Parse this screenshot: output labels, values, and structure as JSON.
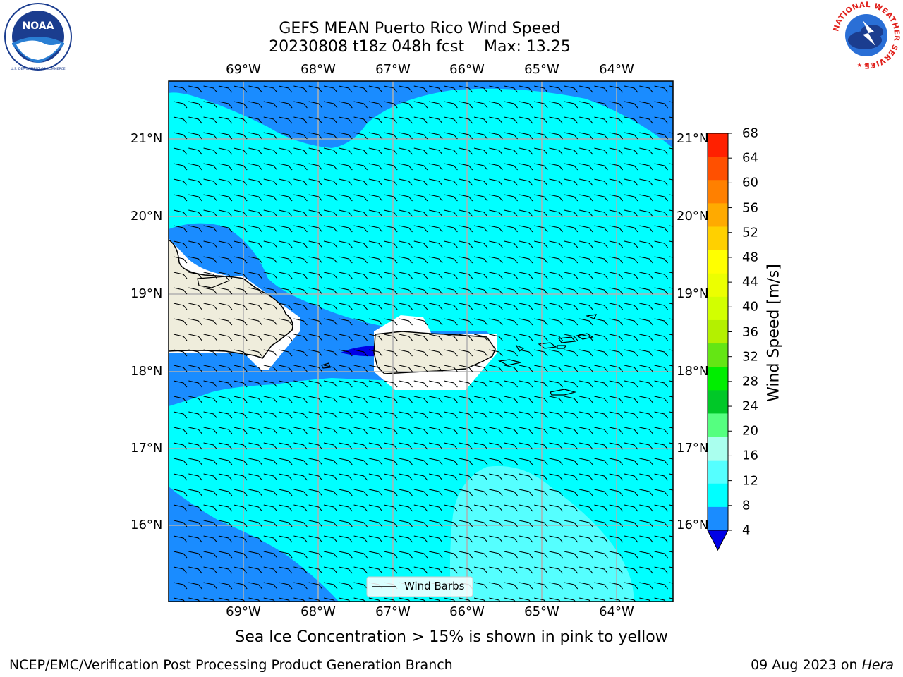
{
  "header": {
    "title_line1": "GEFS MEAN Puerto Rico Wind Speed",
    "title_line2": "20230808 t18z 048h fcst    Max: 13.25"
  },
  "map": {
    "longitudes": [
      "69°W",
      "68°W",
      "67°W",
      "66°W",
      "65°W",
      "64°W"
    ],
    "latitudes": [
      "21°N",
      "20°N",
      "19°N",
      "18°N",
      "17°N",
      "16°N"
    ],
    "legend_label": "Wind Barbs",
    "regions": [
      "Hispaniola",
      "Puerto Rico",
      "Virgin Islands"
    ]
  },
  "colorbar": {
    "label": "Wind Speed [m/s]",
    "ticks": [
      "68",
      "64",
      "60",
      "56",
      "52",
      "48",
      "44",
      "40",
      "36",
      "32",
      "28",
      "24",
      "20",
      "16",
      "12",
      "8",
      "4"
    ],
    "colors": [
      "#ff0000",
      "#ff2000",
      "#ff5000",
      "#ff8000",
      "#ffaa00",
      "#ffd000",
      "#ffff00",
      "#ecff00",
      "#d2ff00",
      "#b4f000",
      "#64e614",
      "#00ee00",
      "#00c828",
      "#55ff80",
      "#aaffee",
      "#55ffff",
      "#00ffff",
      "#1a8cff",
      "#0000e6"
    ]
  },
  "logos": {
    "noaa_text": "NOAA",
    "noaa_ring_text": "NATIONAL OCEANIC AND ATMOSPHERIC ADMINISTRATION",
    "noaa_bottom_text": "U.S. DEPARTMENT OF COMMERCE",
    "nws_text": "NATIONAL WEATHER SERVICE"
  },
  "footer": {
    "sea_ice_note": "Sea Ice Concentration > 15% is shown in pink to yellow",
    "branch": "NCEP/EMC/Verification Post Processing Product Generation Branch",
    "date": "09 Aug 2023 on ",
    "host": "Hera"
  }
}
